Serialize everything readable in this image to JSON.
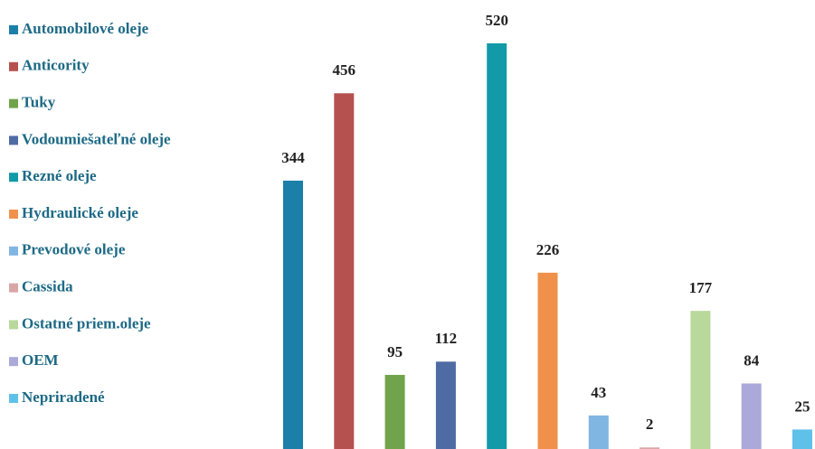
{
  "chart_data": {
    "type": "bar",
    "categories": [
      "Automobilové oleje",
      "Anticority",
      "Tuky",
      "Vodoumiešateľné oleje",
      "Rezné oleje",
      "Hydraulické oleje",
      "Prevodové oleje",
      "Cassida",
      "Ostatné priem.oleje",
      "OEM",
      "Nepriradené"
    ],
    "values": [
      344,
      456,
      95,
      112,
      520,
      226,
      43,
      2,
      177,
      84,
      25
    ],
    "colors": [
      "#1b7fa9",
      "#b5524f",
      "#70a34b",
      "#4f6ba4",
      "#129aa9",
      "#f0914b",
      "#80b6e2",
      "#d9a6a6",
      "#b9d89b",
      "#aaa9d9",
      "#5fc1ea"
    ],
    "ylim": [
      0,
      520
    ]
  }
}
